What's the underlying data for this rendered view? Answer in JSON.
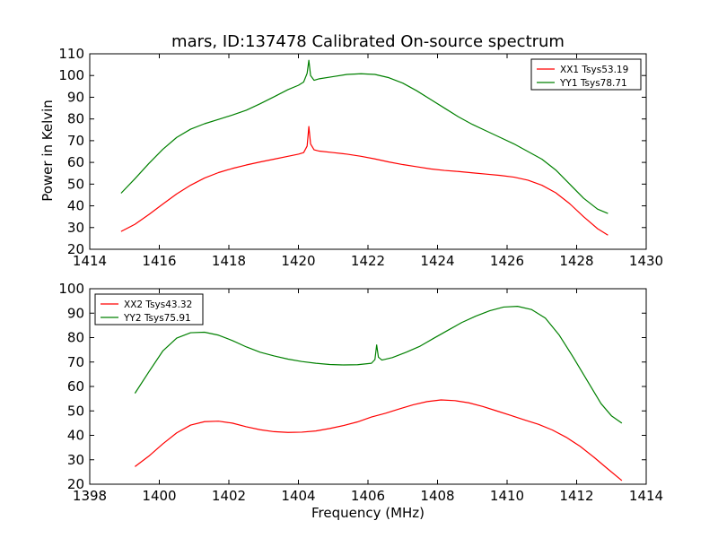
{
  "chart_data": [
    {
      "type": "line",
      "title": "mars, ID:137478 Calibrated On-source spectrum",
      "xlabel": "",
      "ylabel": "Power in Kelvin",
      "xlim": [
        1414,
        1430
      ],
      "ylim": [
        20,
        110
      ],
      "xticks": [
        "1414",
        "1416",
        "1418",
        "1420",
        "1422",
        "1424",
        "1426",
        "1428",
        "1430"
      ],
      "yticks": [
        "20",
        "30",
        "40",
        "50",
        "60",
        "70",
        "80",
        "90",
        "100",
        "110"
      ],
      "grid": false,
      "legend": "top-right",
      "series": [
        {
          "name": "XX1 Tsys53.19",
          "color": "#ff0000",
          "x": [
            1414.9,
            1415.3,
            1415.7,
            1416.1,
            1416.5,
            1416.9,
            1417.3,
            1417.7,
            1418.1,
            1418.5,
            1418.9,
            1419.3,
            1419.7,
            1420.0,
            1420.15,
            1420.25,
            1420.3,
            1420.35,
            1420.45,
            1420.6,
            1421.0,
            1421.4,
            1421.8,
            1422.2,
            1422.6,
            1423.0,
            1423.4,
            1423.8,
            1424.2,
            1424.6,
            1425.0,
            1425.4,
            1425.8,
            1426.2,
            1426.6,
            1427.0,
            1427.4,
            1427.8,
            1428.2,
            1428.6,
            1428.9
          ],
          "values": [
            28.2,
            31.5,
            36.0,
            40.8,
            45.5,
            49.5,
            52.8,
            55.3,
            57.2,
            58.8,
            60.2,
            61.5,
            62.8,
            63.8,
            64.5,
            67.5,
            76.5,
            68.5,
            65.8,
            65.2,
            64.5,
            63.8,
            62.8,
            61.6,
            60.2,
            59.0,
            58.0,
            57.0,
            56.3,
            55.8,
            55.2,
            54.6,
            54.0,
            53.2,
            51.8,
            49.5,
            46.0,
            41.0,
            35.0,
            29.5,
            26.5
          ]
        },
        {
          "name": "YY1 Tsys78.71",
          "color": "#008000",
          "x": [
            1414.9,
            1415.3,
            1415.7,
            1416.1,
            1416.5,
            1416.9,
            1417.3,
            1417.7,
            1418.1,
            1418.5,
            1418.9,
            1419.3,
            1419.7,
            1420.0,
            1420.15,
            1420.25,
            1420.3,
            1420.35,
            1420.45,
            1420.6,
            1421.0,
            1421.4,
            1421.8,
            1422.2,
            1422.6,
            1423.0,
            1423.4,
            1423.8,
            1424.2,
            1424.6,
            1425.0,
            1425.4,
            1425.8,
            1426.2,
            1426.6,
            1427.0,
            1427.4,
            1427.8,
            1428.2,
            1428.6,
            1428.9
          ],
          "values": [
            45.8,
            52.5,
            59.5,
            66.0,
            71.5,
            75.3,
            77.8,
            79.8,
            81.8,
            84.0,
            87.0,
            90.2,
            93.5,
            95.5,
            97.0,
            101.0,
            107.0,
            100.0,
            97.8,
            98.5,
            99.5,
            100.5,
            100.8,
            100.5,
            99.0,
            96.5,
            93.0,
            89.0,
            85.0,
            81.0,
            77.5,
            74.5,
            71.5,
            68.5,
            65.0,
            61.5,
            56.5,
            50.0,
            43.5,
            38.5,
            36.5
          ]
        }
      ]
    },
    {
      "type": "line",
      "title": "",
      "xlabel": "Frequency (MHz)",
      "ylabel": "",
      "xlim": [
        1398,
        1414
      ],
      "ylim": [
        20,
        100
      ],
      "xticks": [
        "1398",
        "1400",
        "1402",
        "1404",
        "1406",
        "1408",
        "1410",
        "1412",
        "1414"
      ],
      "yticks": [
        "20",
        "30",
        "40",
        "50",
        "60",
        "70",
        "80",
        "90",
        "100"
      ],
      "grid": false,
      "legend": "top-left",
      "series": [
        {
          "name": "XX2 Tsys43.32",
          "color": "#ff0000",
          "x": [
            1399.3,
            1399.7,
            1400.1,
            1400.5,
            1400.9,
            1401.3,
            1401.7,
            1402.1,
            1402.5,
            1402.9,
            1403.3,
            1403.7,
            1404.1,
            1404.5,
            1404.9,
            1405.3,
            1405.7,
            1406.1,
            1406.5,
            1406.9,
            1407.3,
            1407.7,
            1408.1,
            1408.5,
            1408.9,
            1409.3,
            1409.7,
            1410.1,
            1410.5,
            1410.9,
            1411.3,
            1411.7,
            1412.1,
            1412.5,
            1412.9,
            1413.3
          ],
          "values": [
            27.2,
            31.5,
            36.5,
            41.0,
            44.2,
            45.6,
            45.8,
            45.0,
            43.5,
            42.3,
            41.5,
            41.2,
            41.3,
            41.8,
            42.8,
            44.0,
            45.5,
            47.5,
            49.0,
            50.8,
            52.5,
            53.8,
            54.5,
            54.2,
            53.3,
            51.8,
            50.0,
            48.2,
            46.3,
            44.5,
            42.2,
            39.2,
            35.5,
            31.0,
            26.2,
            21.5
          ]
        },
        {
          "name": "YY2 Tsys75.91",
          "color": "#008000",
          "x": [
            1399.3,
            1399.7,
            1400.1,
            1400.5,
            1400.9,
            1401.3,
            1401.7,
            1402.1,
            1402.5,
            1402.9,
            1403.3,
            1403.7,
            1404.1,
            1404.5,
            1404.9,
            1405.3,
            1405.7,
            1406.1,
            1406.2,
            1406.25,
            1406.3,
            1406.4,
            1406.7,
            1407.1,
            1407.5,
            1407.9,
            1408.3,
            1408.7,
            1409.1,
            1409.5,
            1409.9,
            1410.3,
            1410.7,
            1411.1,
            1411.5,
            1411.9,
            1412.3,
            1412.7,
            1413.0,
            1413.3
          ],
          "values": [
            57.2,
            66.0,
            74.5,
            79.8,
            82.0,
            82.2,
            81.0,
            78.8,
            76.2,
            74.0,
            72.5,
            71.2,
            70.2,
            69.5,
            69.0,
            68.8,
            68.9,
            69.5,
            71.0,
            77.0,
            72.0,
            70.8,
            71.8,
            74.0,
            76.5,
            79.8,
            83.0,
            86.2,
            88.8,
            91.0,
            92.5,
            92.8,
            91.5,
            88.0,
            81.0,
            72.0,
            62.5,
            53.0,
            48.0,
            45.0
          ]
        }
      ]
    }
  ]
}
